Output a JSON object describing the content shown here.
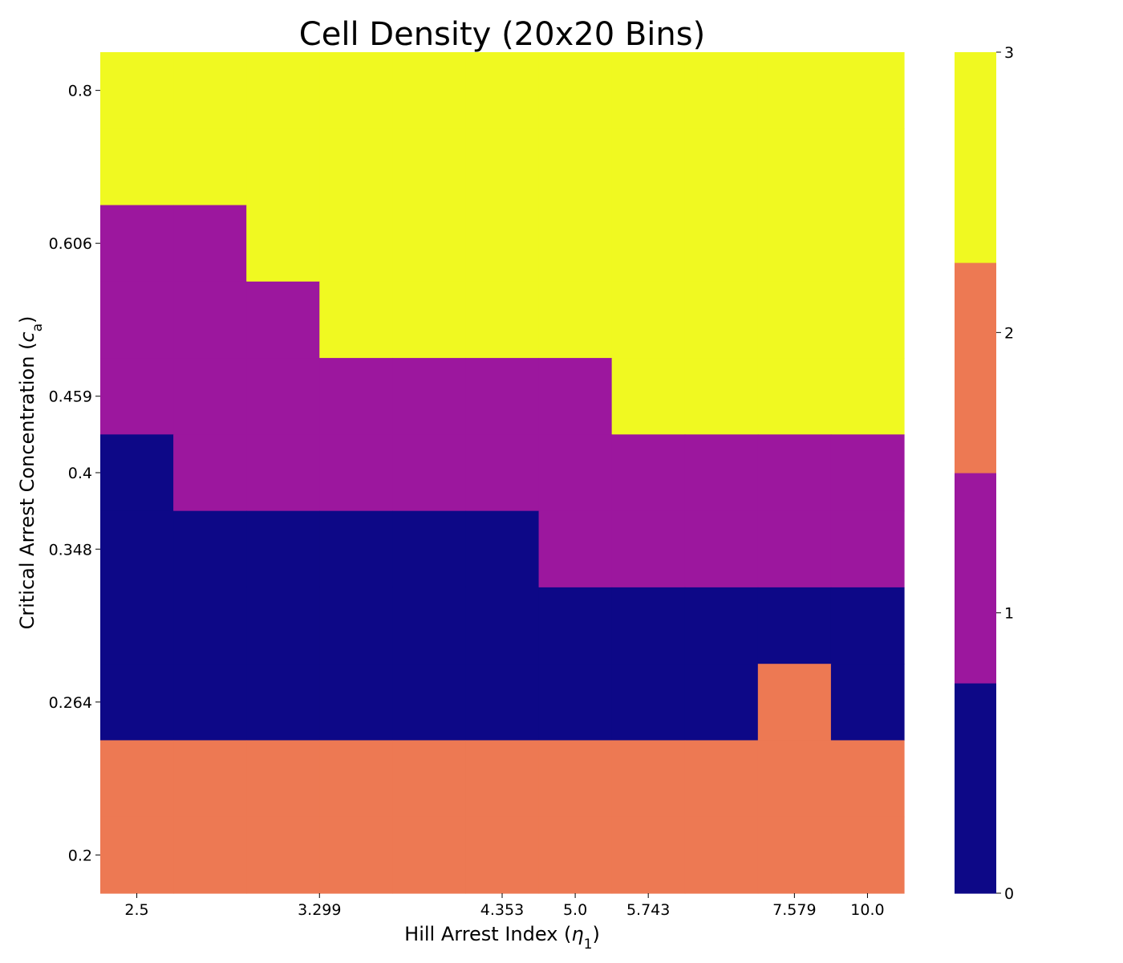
{
  "chart_data": {
    "type": "heatmap",
    "title": "Cell Density (20x20 Bins)",
    "xlabel": {
      "text": "Hill Arrest Index (",
      "symbol": "η",
      "subscript": "1",
      "close": ")"
    },
    "ylabel": {
      "text": "Critical Arrest Concentration (",
      "symbol": "c",
      "subscript": "a",
      "close": ")"
    },
    "x_labels": [
      "2.5",
      "3.299",
      "4.353",
      "5.0",
      "5.743",
      "7.579",
      "10.0"
    ],
    "x_label_columns": [
      0.5,
      3,
      5.5,
      6.5,
      7.5,
      9.5,
      10.5
    ],
    "y_labels": [
      "0.8",
      "0.606",
      "0.459",
      "0.4",
      "0.348",
      "0.264",
      "0.2"
    ],
    "y_label_rows": [
      0.5,
      2.5,
      4.5,
      5.5,
      6.5,
      8.5,
      10.5
    ],
    "rows_top_to_bottom": [
      [
        3,
        3,
        3,
        3,
        3,
        3,
        3,
        3,
        3,
        3,
        3
      ],
      [
        3,
        3,
        3,
        3,
        3,
        3,
        3,
        3,
        3,
        3,
        3
      ],
      [
        1,
        1,
        3,
        3,
        3,
        3,
        3,
        3,
        3,
        3,
        3
      ],
      [
        1,
        1,
        1,
        3,
        3,
        3,
        3,
        3,
        3,
        3,
        3
      ],
      [
        1,
        1,
        1,
        1,
        1,
        1,
        1,
        3,
        3,
        3,
        3
      ],
      [
        0,
        1,
        1,
        1,
        1,
        1,
        1,
        1,
        1,
        1,
        1
      ],
      [
        0,
        0,
        0,
        0,
        0,
        0,
        1,
        1,
        1,
        1,
        1
      ],
      [
        0,
        0,
        0,
        0,
        0,
        0,
        0,
        0,
        0,
        0,
        0
      ],
      [
        0,
        0,
        0,
        0,
        0,
        0,
        0,
        0,
        0,
        2,
        0
      ],
      [
        2,
        2,
        2,
        2,
        2,
        2,
        2,
        2,
        2,
        2,
        2
      ],
      [
        2,
        2,
        2,
        2,
        2,
        2,
        2,
        2,
        2,
        2,
        2
      ]
    ],
    "colorbar": {
      "min": 0,
      "max": 3,
      "ticks": [
        "0",
        "1",
        "2",
        "3"
      ],
      "colors": [
        "#0d0887",
        "#9c179e",
        "#ed7953",
        "#f0f921"
      ]
    },
    "colors": {
      "0": "#0d0887",
      "1": "#9c179e",
      "2": "#ed7953",
      "3": "#f0f921"
    },
    "grid": false
  }
}
